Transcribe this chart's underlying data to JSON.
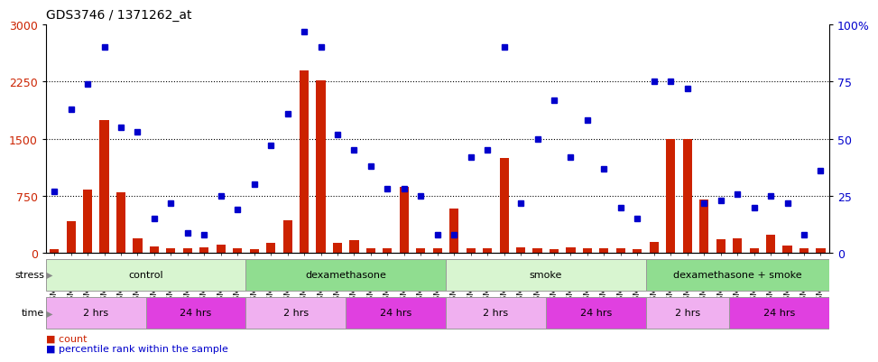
{
  "title": "GDS3746 / 1371262_at",
  "samples": [
    "GSM389536",
    "GSM389537",
    "GSM389538",
    "GSM389539",
    "GSM389540",
    "GSM389541",
    "GSM389530",
    "GSM389531",
    "GSM389532",
    "GSM389533",
    "GSM389534",
    "GSM389535",
    "GSM389560",
    "GSM389561",
    "GSM389562",
    "GSM389563",
    "GSM389564",
    "GSM389565",
    "GSM389554",
    "GSM389555",
    "GSM389556",
    "GSM389557",
    "GSM389558",
    "GSM389559",
    "GSM389571",
    "GSM389572",
    "GSM389573",
    "GSM389574",
    "GSM389575",
    "GSM389576",
    "GSM389566",
    "GSM389567",
    "GSM389568",
    "GSM389569",
    "GSM389570",
    "GSM389548",
    "GSM389549",
    "GSM389550",
    "GSM389551",
    "GSM389552",
    "GSM389553",
    "GSM389542",
    "GSM389543",
    "GSM389544",
    "GSM389545",
    "GSM389546",
    "GSM389547"
  ],
  "counts": [
    50,
    420,
    830,
    1750,
    800,
    200,
    90,
    60,
    60,
    70,
    110,
    60,
    55,
    130,
    430,
    2400,
    2270,
    130,
    170,
    60,
    60,
    870,
    60,
    60,
    580,
    60,
    60,
    1250,
    80,
    60,
    50,
    70,
    60,
    60,
    60,
    50,
    150,
    1500,
    1500,
    700,
    180,
    190,
    60,
    240,
    100,
    60,
    60
  ],
  "percentiles": [
    27,
    63,
    74,
    90,
    55,
    53,
    15,
    22,
    9,
    8,
    25,
    19,
    30,
    47,
    61,
    97,
    90,
    52,
    45,
    38,
    28,
    28,
    25,
    8,
    8,
    42,
    45,
    90,
    22,
    50,
    67,
    42,
    58,
    37,
    20,
    15,
    75,
    75,
    72,
    22,
    23,
    26,
    20,
    25,
    22,
    8,
    36
  ],
  "stress_groups": [
    {
      "label": "control",
      "start": 0,
      "end": 11,
      "color": "#d8f5d0"
    },
    {
      "label": "dexamethasone",
      "start": 12,
      "end": 23,
      "color": "#90dd90"
    },
    {
      "label": "smoke",
      "start": 24,
      "end": 35,
      "color": "#d8f5d0"
    },
    {
      "label": "dexamethasone + smoke",
      "start": 36,
      "end": 46,
      "color": "#90dd90"
    }
  ],
  "time_groups": [
    {
      "label": "2 hrs",
      "start": 0,
      "end": 5,
      "color": "#f0b0f0"
    },
    {
      "label": "24 hrs",
      "start": 6,
      "end": 11,
      "color": "#e040e0"
    },
    {
      "label": "2 hrs",
      "start": 12,
      "end": 17,
      "color": "#f0b0f0"
    },
    {
      "label": "24 hrs",
      "start": 18,
      "end": 23,
      "color": "#e040e0"
    },
    {
      "label": "2 hrs",
      "start": 24,
      "end": 29,
      "color": "#f0b0f0"
    },
    {
      "label": "24 hrs",
      "start": 30,
      "end": 35,
      "color": "#e040e0"
    },
    {
      "label": "2 hrs",
      "start": 36,
      "end": 40,
      "color": "#f0b0f0"
    },
    {
      "label": "24 hrs",
      "start": 41,
      "end": 46,
      "color": "#e040e0"
    }
  ],
  "ylim_left": [
    0,
    3000
  ],
  "ylim_right": [
    0,
    100
  ],
  "yticks_left": [
    0,
    750,
    1500,
    2250,
    3000
  ],
  "yticks_right": [
    0,
    25,
    50,
    75,
    100
  ],
  "bar_color": "#cc2200",
  "dot_color": "#0000cc",
  "background_color": "#ffffff",
  "title_fontsize": 10,
  "tick_fontsize": 6.2,
  "n_samples": 47
}
